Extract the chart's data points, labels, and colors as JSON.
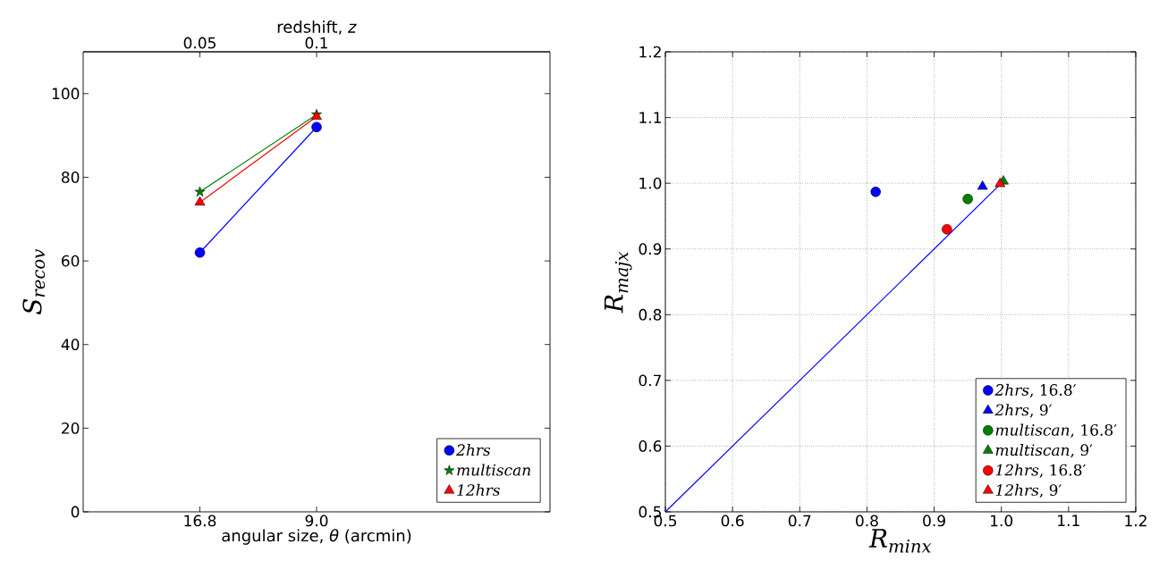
{
  "chart_data": [
    {
      "type": "line",
      "xlabel": "angular size, *θ* (arcmin)",
      "x2label": "redshift, *z*",
      "ylabel": "S$_{recov}$",
      "categories": [
        "16.8",
        "9.0"
      ],
      "x2lim": [
        0,
        0.2
      ],
      "x2ticks": [
        0.05,
        0.1
      ],
      "ylim": [
        0,
        110
      ],
      "yticks": [
        0,
        20,
        40,
        60,
        80,
        100
      ],
      "grid": false,
      "legend": "bottom right",
      "line_style": "solid",
      "series": [
        {
          "name": "2hrs",
          "color": "#0000ff",
          "marker": "circle",
          "values": [
            62,
            92
          ]
        },
        {
          "name": "multiscan",
          "color": "#008000",
          "marker": "star",
          "values": [
            76.5,
            95
          ]
        },
        {
          "name": "12hrs",
          "color": "#ff0000",
          "marker": "triangle",
          "values": [
            74,
            94.5
          ]
        }
      ]
    },
    {
      "type": "scatter",
      "xlabel": "R$_{minx}$",
      "ylabel": "R$_{majx}$",
      "xlim": [
        0.5,
        1.2
      ],
      "xticks": [
        0.5,
        0.6,
        0.7,
        0.8,
        0.9,
        {
          "value": 1.0,
          "label": "1.0"
        },
        1.1,
        1.2
      ],
      "ylim": [
        0.5,
        1.2
      ],
      "yticks": [
        0.5,
        0.6,
        0.7,
        0.8,
        0.9,
        {
          "value": 1.0,
          "label": "1.0"
        },
        1.1,
        1.2
      ],
      "grid": true,
      "legend": "bottom right",
      "series": [
        {
          "type": "line",
          "color": "#0000ff",
          "marker": "none",
          "x": [
            0.5,
            1.0
          ],
          "values": [
            0.5,
            1.0
          ]
        },
        {
          "name": "*2hrs*, 16.8′",
          "color": "#0000ff",
          "marker": "circle",
          "x": [
            0.813
          ],
          "values": [
            0.987
          ]
        },
        {
          "name": "*2hrs*, 9′",
          "color": "#0000ff",
          "marker": "triangle",
          "x": [
            0.972
          ],
          "values": [
            0.995
          ]
        },
        {
          "name": "*multiscan*, 16.8′",
          "color": "#008000",
          "marker": "circle",
          "x": [
            0.95
          ],
          "values": [
            0.976
          ]
        },
        {
          "name": "*multiscan*, 9′",
          "color": "#008000",
          "marker": "triangle",
          "x": [
            1.003
          ],
          "values": [
            1.003
          ]
        },
        {
          "name": "*12hrs*, 16.8′",
          "color": "#ff0000",
          "marker": "circle",
          "x": [
            0.919
          ],
          "values": [
            0.93
          ]
        },
        {
          "name": "*12hrs*, 9′",
          "color": "#ff0000",
          "marker": "triangle",
          "x": [
            0.998
          ],
          "values": [
            0.999
          ]
        }
      ]
    }
  ]
}
